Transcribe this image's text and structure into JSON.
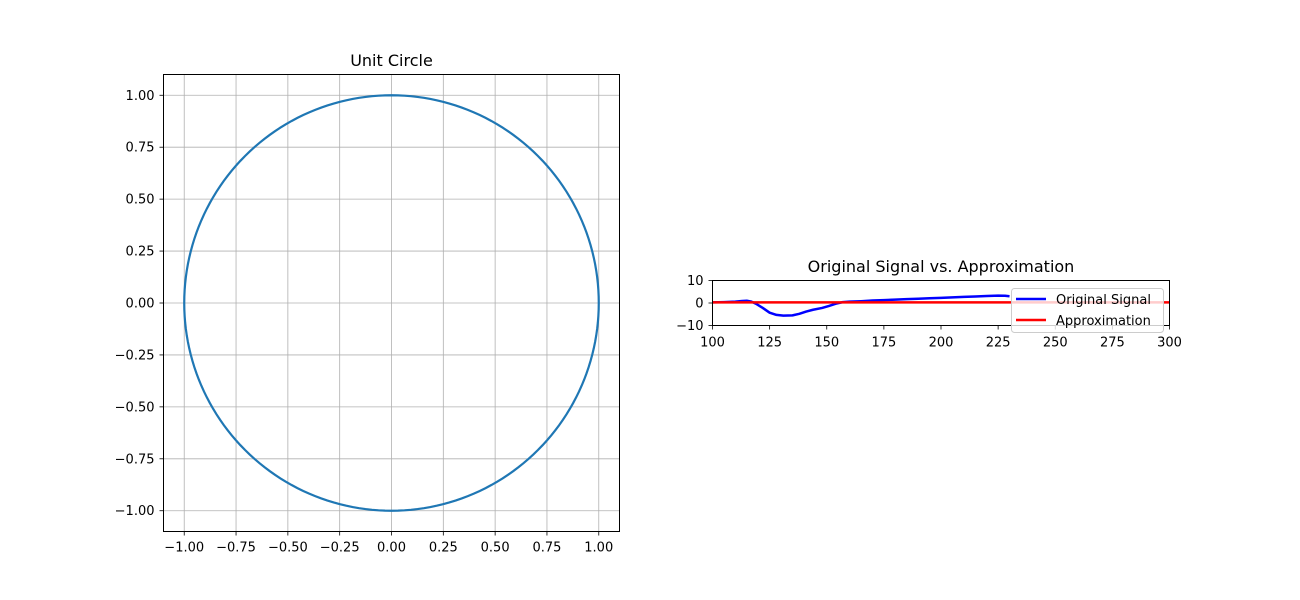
{
  "chart_data": [
    {
      "type": "line",
      "title": "Unit Circle",
      "xlabel": "",
      "ylabel": "",
      "xlim": [
        -1.1,
        1.1
      ],
      "ylim": [
        -1.1,
        1.1
      ],
      "grid": true,
      "aspect": "equal",
      "x_ticks": [
        -1.0,
        -0.75,
        -0.5,
        -0.25,
        0.0,
        0.25,
        0.5,
        0.75,
        1.0
      ],
      "x_tick_labels": [
        "−1.00",
        "−0.75",
        "−0.50",
        "−0.25",
        "0.00",
        "0.25",
        "0.50",
        "0.75",
        "1.00"
      ],
      "y_ticks": [
        1.0,
        0.75,
        0.5,
        0.25,
        0.0,
        -0.25,
        -0.5,
        -0.75,
        -1.0
      ],
      "y_tick_labels": [
        "1.00",
        "0.75",
        "0.50",
        "0.25",
        "0.00",
        "−0.25",
        "−0.50",
        "−0.75",
        "−1.00"
      ],
      "series": [
        {
          "curve": "circle",
          "radius": 1.0,
          "center": [
            0,
            0
          ],
          "color": "#1f77b4"
        }
      ]
    },
    {
      "type": "line",
      "title": "Original Signal vs. Approximation",
      "xlabel": "",
      "ylabel": "",
      "xlim": [
        100,
        300
      ],
      "ylim": [
        -10,
        10
      ],
      "grid": false,
      "legend_position": "right",
      "x_ticks": [
        100,
        125,
        150,
        175,
        200,
        225,
        250,
        275,
        300
      ],
      "x_tick_labels": [
        "100",
        "125",
        "150",
        "175",
        "200",
        "225",
        "250",
        "275",
        "300"
      ],
      "y_ticks": [
        10,
        0,
        -10
      ],
      "y_tick_labels": [
        "10",
        "0",
        "−10"
      ],
      "series": [
        {
          "name": "Original Signal",
          "color": "#0000ff",
          "x": [
            100,
            105,
            110,
            113,
            115,
            117,
            119,
            122,
            125,
            128,
            131,
            135,
            138,
            141,
            144,
            148,
            151,
            154,
            157,
            160,
            165,
            170,
            175,
            180,
            185,
            190,
            195,
            200,
            205,
            210,
            215,
            220,
            225,
            228,
            230
          ],
          "y": [
            0.3,
            0.4,
            0.6,
            0.9,
            1.0,
            0.6,
            -0.3,
            -2.2,
            -4.3,
            -5.3,
            -5.6,
            -5.5,
            -4.8,
            -3.8,
            -3.0,
            -2.2,
            -1.3,
            -0.3,
            0.4,
            0.6,
            0.8,
            1.1,
            1.3,
            1.5,
            1.7,
            1.9,
            2.1,
            2.3,
            2.5,
            2.7,
            2.9,
            3.1,
            3.3,
            3.2,
            3.0
          ]
        },
        {
          "name": "Approximation",
          "color": "#ff0000",
          "x": [
            100,
            150,
            200,
            250,
            300
          ],
          "y": [
            0.3,
            0.3,
            0.3,
            0.3,
            0.3
          ]
        }
      ]
    }
  ]
}
